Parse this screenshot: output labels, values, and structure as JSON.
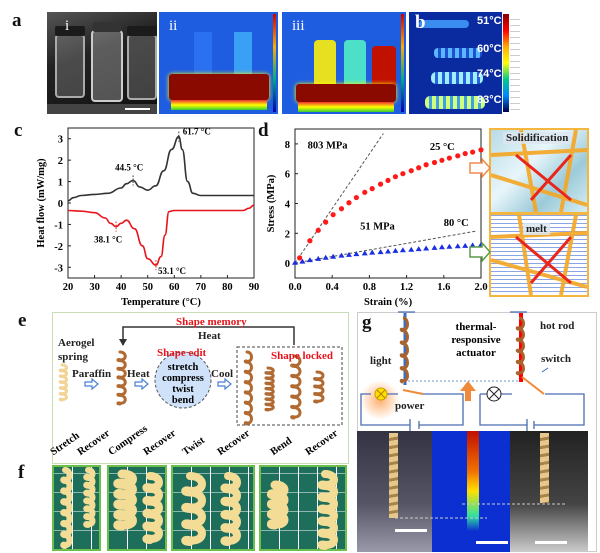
{
  "panels": {
    "a": "a",
    "b": "b",
    "c": "c",
    "d": "d",
    "e": "e",
    "f": "f",
    "g": "g"
  },
  "panel_a": {
    "sublabels": [
      "i",
      "ii",
      "iii"
    ]
  },
  "panel_b": {
    "temperatures": [
      "51°C",
      "60°C",
      "74°C",
      "83°C"
    ]
  },
  "chart_data": [
    {
      "type": "line",
      "xlabel": "Temperature (°C)",
      "ylabel": "Heat flow (mW/mg)",
      "xlim": [
        20,
        90
      ],
      "ylim": [
        -3.5,
        3.5
      ],
      "xticks": [
        20,
        30,
        40,
        50,
        60,
        70,
        80,
        90
      ],
      "yticks": [
        -3,
        -2,
        -1,
        0,
        1,
        2,
        3
      ],
      "series": [
        {
          "color": "#333333",
          "x": [
            20,
            22,
            25,
            30,
            35,
            40,
            42,
            44.5,
            47,
            50,
            53,
            56,
            59,
            61.7,
            63,
            65,
            67,
            70,
            80,
            90
          ],
          "y": [
            0.1,
            0.25,
            0.35,
            0.4,
            0.45,
            0.7,
            0.9,
            1.05,
            0.75,
            0.6,
            0.8,
            1.5,
            2.5,
            3.1,
            2.5,
            1.0,
            0.45,
            0.35,
            0.35,
            0.35
          ]
        },
        {
          "color": "#e8141b",
          "x": [
            20,
            25,
            30,
            34,
            36,
            38.1,
            40,
            42,
            45,
            48,
            50,
            53.1,
            55,
            56.5,
            58,
            60,
            70,
            80,
            86,
            88,
            90
          ],
          "y": [
            -0.35,
            -0.38,
            -0.45,
            -0.7,
            -0.95,
            -1.1,
            -0.95,
            -0.8,
            -1.2,
            -2.0,
            -2.6,
            -2.9,
            -2.5,
            -1.5,
            -0.4,
            -0.35,
            -0.35,
            -0.35,
            -0.35,
            -0.25,
            -0.1
          ]
        }
      ],
      "annotations": [
        {
          "text": "61.7 °C",
          "x": 61.7,
          "y": 3.1
        },
        {
          "text": "44.5 °C",
          "x": 44.5,
          "y": 1.05
        },
        {
          "text": "38.1 °C",
          "x": 38.1,
          "y": -1.1
        },
        {
          "text": "53.1 °C",
          "x": 53.1,
          "y": -2.9
        }
      ]
    },
    {
      "type": "scatter",
      "xlabel": "Strain (%)",
      "ylabel": "Stress (MPa)",
      "xlim": [
        0,
        2.0
      ],
      "ylim": [
        -1,
        9
      ],
      "xticks": [
        "0.0",
        "0.4",
        "0.8",
        "1.2",
        "1.6",
        "2.0"
      ],
      "yticks": [
        0,
        2,
        4,
        6,
        8
      ],
      "series": [
        {
          "name": "25 °C",
          "color": "#ff1a1a",
          "marker": "circle",
          "x": [
            0.05,
            0.16,
            0.25,
            0.33,
            0.41,
            0.5,
            0.58,
            0.66,
            0.75,
            0.83,
            0.92,
            1.0,
            1.08,
            1.16,
            1.25,
            1.33,
            1.41,
            1.5,
            1.58,
            1.66,
            1.75,
            1.83,
            1.91,
            2.0
          ],
          "y": [
            0.35,
            1.5,
            2.2,
            2.75,
            3.25,
            3.65,
            4.05,
            4.4,
            4.75,
            5.0,
            5.3,
            5.55,
            5.8,
            6.0,
            6.2,
            6.4,
            6.6,
            6.75,
            6.9,
            7.05,
            7.2,
            7.35,
            7.45,
            7.6
          ]
        },
        {
          "name": "80 °C",
          "color": "#1a2ee6",
          "marker": "triangle",
          "x": [
            0.0,
            0.08,
            0.16,
            0.25,
            0.33,
            0.41,
            0.5,
            0.58,
            0.66,
            0.75,
            0.83,
            0.92,
            1.0,
            1.08,
            1.16,
            1.25,
            1.33,
            1.41,
            1.5,
            1.58,
            1.66,
            1.75,
            1.83,
            1.91,
            2.0
          ],
          "y": [
            0.02,
            0.1,
            0.2,
            0.28,
            0.36,
            0.43,
            0.5,
            0.55,
            0.6,
            0.65,
            0.7,
            0.74,
            0.78,
            0.82,
            0.86,
            0.9,
            0.94,
            0.98,
            1.02,
            1.06,
            1.1,
            1.13,
            1.16,
            1.19,
            1.22
          ]
        }
      ],
      "fit_lines": [
        {
          "label": "803 MPa",
          "x": [
            0,
            0.95
          ],
          "y": [
            0,
            8.7
          ]
        },
        {
          "label": "51 MPa",
          "x": [
            0,
            1.95
          ],
          "y": [
            0,
            2.15
          ]
        }
      ],
      "series_labels": [
        "25 °C",
        "80 °C"
      ]
    }
  ],
  "panel_d_schematic": {
    "top": "Solidification",
    "bottom": "melt"
  },
  "panel_e": {
    "shape_memory": "Shape memory",
    "heat_top": "Heat",
    "aerogel_spring": "Aerogel spring",
    "shape_edit": "Shape edit",
    "paraffin": "Paraffin",
    "heat": "Heat",
    "edit_ops": [
      "stretch",
      "compress",
      "twist",
      "bend"
    ],
    "cool": "Cool",
    "shape_locked": "Shape locked"
  },
  "panel_f": {
    "labels": [
      "Stretch",
      "Recover",
      "Compress",
      "Recover",
      "Twist",
      "Recover",
      "Bend",
      "Recover"
    ]
  },
  "panel_g": {
    "actuator": "thermal-responsive actuator",
    "light": "light",
    "power": "power",
    "hot_rod": "hot rod",
    "switch": "switch"
  }
}
